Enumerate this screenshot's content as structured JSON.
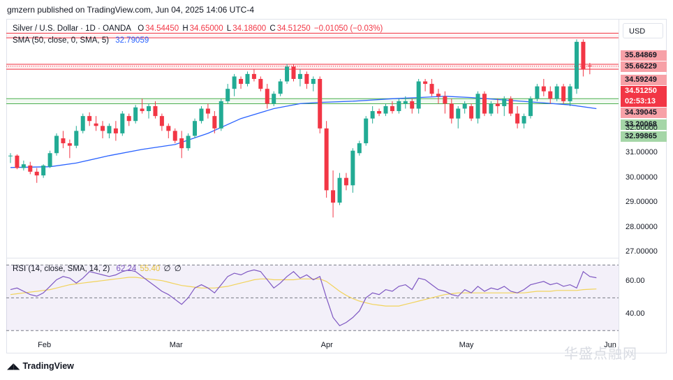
{
  "caption": "gmzern published on TradingView.com, Jun 04, 2025 14:06 UTC-4",
  "legend": {
    "symbol": "Silver / U.S. Dollar · 1D · OANDA",
    "open_label": "O",
    "open": "34.54450",
    "high_label": "H",
    "high": "34.65000",
    "low_label": "L",
    "low": "34.18600",
    "close_label": "C",
    "close": "34.51250",
    "change": "−0.01050 (−0.03%)",
    "sma_label": "SMA (50, close, 0, SMA, 5)",
    "sma_value": "32.79059",
    "rsi_label": "RSI (14, close, SMA, 14, 2)",
    "rsi_value": "62.24",
    "rsi_sma_value": "55.40",
    "rsi_extra1": "∅",
    "rsi_extra2": "∅"
  },
  "currency_button": "USD",
  "price_tags": [
    {
      "text": "35.84869",
      "bg": "#f7a1a7",
      "fg": "#131722"
    },
    {
      "text": "35.66229",
      "bg": "#f7a1a7",
      "fg": "#131722"
    },
    {
      "text": "34.59249",
      "bg": "#f7a1a7",
      "fg": "#131722"
    },
    {
      "text": "34.51250",
      "bg": "#f23645",
      "fg": "#ffffff"
    },
    {
      "text": "02:53:13",
      "bg": "#f23645",
      "fg": "#ffffff"
    },
    {
      "text": "34.39045",
      "bg": "#f7a1a7",
      "fg": "#131722"
    },
    {
      "text": "33.20068",
      "bg": "#a5d6a7",
      "fg": "#131722"
    },
    {
      "text": "32.99865",
      "bg": "#a5d6a7",
      "fg": "#131722"
    }
  ],
  "brand": "TradingView",
  "watermark": "华盛点融网",
  "colors": {
    "up": "#22ab94",
    "down": "#f23645",
    "sma": "#2962ff",
    "rsi": "#7e57c2",
    "rsi_sma": "#f2d35b",
    "resistance": "#f23645",
    "support": "#4caf50"
  },
  "chart_data": [
    {
      "type": "candlestick",
      "title": "Silver / U.S. Dollar · 1D · OANDA",
      "y_ticks": [
        "32.00000",
        "31.00000",
        "30.00000",
        "29.00000",
        "28.00000",
        "27.00000"
      ],
      "y_tick_values": [
        32,
        31,
        30,
        29,
        28,
        27
      ],
      "x_ticks": [
        "Feb",
        "Mar",
        "Apr",
        "May",
        "Jun"
      ],
      "x_tick_index": [
        5,
        25,
        48,
        69,
        91
      ],
      "ylim": [
        26.8,
        36.4
      ],
      "horizontal_levels": {
        "resistance": [
          35.84869,
          35.66229,
          34.59249,
          34.39045
        ],
        "support": [
          33.20068,
          32.99865
        ]
      },
      "last_price": 34.5125,
      "ohlc": [
        [
          30.9,
          31.0,
          30.6,
          30.9
        ],
        [
          30.9,
          30.95,
          30.35,
          30.4
        ],
        [
          30.4,
          30.7,
          30.3,
          30.55
        ],
        [
          30.5,
          30.65,
          30.15,
          30.25
        ],
        [
          30.25,
          30.4,
          29.8,
          30.1
        ],
        [
          30.1,
          30.55,
          30.0,
          30.5
        ],
        [
          30.45,
          31.1,
          30.4,
          31.0
        ],
        [
          31.0,
          31.8,
          30.9,
          31.7
        ],
        [
          31.6,
          31.9,
          31.2,
          31.4
        ],
        [
          31.4,
          31.55,
          30.8,
          31.3
        ],
        [
          31.3,
          32.1,
          31.2,
          31.9
        ],
        [
          31.9,
          32.6,
          31.8,
          32.5
        ],
        [
          32.5,
          32.65,
          32.1,
          32.3
        ],
        [
          32.2,
          32.5,
          31.9,
          32.1
        ],
        [
          32.1,
          32.3,
          31.6,
          31.9
        ],
        [
          31.8,
          32.2,
          31.6,
          32.1
        ],
        [
          32.0,
          32.3,
          31.5,
          31.8
        ],
        [
          31.8,
          32.7,
          31.7,
          32.6
        ],
        [
          32.5,
          32.6,
          32.1,
          32.3
        ],
        [
          32.3,
          32.95,
          32.2,
          32.85
        ],
        [
          32.8,
          33.2,
          32.6,
          32.7
        ],
        [
          32.7,
          33.0,
          32.4,
          32.9
        ],
        [
          32.9,
          33.1,
          32.4,
          32.5
        ],
        [
          32.5,
          32.6,
          31.9,
          32.1
        ],
        [
          32.1,
          32.2,
          31.6,
          31.9
        ],
        [
          31.9,
          32.0,
          31.4,
          31.5
        ],
        [
          31.6,
          31.9,
          30.8,
          31.2
        ],
        [
          31.2,
          31.8,
          31.1,
          31.7
        ],
        [
          31.7,
          32.4,
          31.6,
          32.3
        ],
        [
          32.3,
          32.9,
          32.2,
          32.8
        ],
        [
          32.8,
          33.0,
          32.4,
          32.6
        ],
        [
          32.5,
          32.7,
          31.8,
          32.0
        ],
        [
          32.0,
          33.2,
          31.9,
          33.1
        ],
        [
          33.1,
          33.8,
          33.0,
          33.6
        ],
        [
          33.6,
          34.2,
          33.3,
          34.1
        ],
        [
          34.0,
          34.1,
          33.6,
          33.8
        ],
        [
          33.8,
          34.3,
          33.7,
          34.2
        ],
        [
          34.2,
          34.4,
          33.9,
          34.0
        ],
        [
          34.0,
          34.1,
          33.5,
          33.6
        ],
        [
          33.6,
          33.8,
          32.8,
          33.0
        ],
        [
          33.0,
          33.5,
          32.9,
          33.4
        ],
        [
          33.4,
          34.0,
          33.3,
          33.9
        ],
        [
          33.9,
          34.6,
          33.8,
          34.5
        ],
        [
          34.5,
          34.6,
          33.9,
          34.0
        ],
        [
          34.0,
          34.4,
          33.7,
          34.2
        ],
        [
          34.2,
          34.3,
          33.6,
          33.8
        ],
        [
          33.8,
          34.1,
          33.5,
          34.0
        ],
        [
          34.0,
          34.1,
          31.8,
          32.0
        ],
        [
          32.0,
          32.3,
          29.2,
          29.5
        ],
        [
          29.5,
          30.3,
          28.4,
          29.0
        ],
        [
          29.0,
          30.2,
          28.9,
          30.0
        ],
        [
          30.0,
          30.2,
          29.5,
          29.7
        ],
        [
          29.7,
          31.2,
          29.4,
          31.1
        ],
        [
          31.0,
          31.5,
          30.9,
          31.4
        ],
        [
          31.4,
          32.5,
          31.3,
          32.4
        ],
        [
          32.4,
          32.9,
          32.2,
          32.7
        ],
        [
          32.7,
          32.8,
          32.5,
          32.6
        ],
        [
          32.6,
          33.0,
          32.5,
          32.9
        ],
        [
          32.9,
          33.1,
          32.6,
          32.7
        ],
        [
          32.7,
          33.2,
          32.6,
          33.1
        ],
        [
          33.0,
          33.3,
          32.8,
          33.1
        ],
        [
          33.1,
          33.2,
          32.6,
          32.8
        ],
        [
          32.8,
          34.0,
          32.6,
          33.9
        ],
        [
          33.9,
          34.0,
          33.5,
          33.8
        ],
        [
          33.8,
          34.0,
          33.3,
          33.4
        ],
        [
          33.4,
          33.6,
          33.0,
          33.3
        ],
        [
          33.3,
          33.5,
          32.6,
          33.0
        ],
        [
          33.0,
          33.2,
          32.2,
          32.4
        ],
        [
          32.4,
          32.9,
          32.0,
          32.8
        ],
        [
          32.8,
          33.1,
          32.6,
          33.0
        ],
        [
          32.9,
          33.0,
          32.3,
          32.4
        ],
        [
          32.4,
          33.5,
          32.2,
          33.4
        ],
        [
          33.4,
          33.5,
          32.5,
          32.6
        ],
        [
          32.6,
          33.1,
          32.5,
          33.0
        ],
        [
          33.0,
          33.2,
          32.6,
          32.9
        ],
        [
          32.9,
          33.3,
          32.5,
          33.2
        ],
        [
          33.2,
          33.3,
          32.5,
          32.6
        ],
        [
          32.6,
          32.9,
          32.0,
          32.2
        ],
        [
          32.2,
          32.6,
          32.0,
          32.5
        ],
        [
          32.5,
          33.3,
          32.4,
          33.2
        ],
        [
          33.2,
          33.8,
          33.1,
          33.7
        ],
        [
          33.7,
          34.0,
          33.3,
          33.5
        ],
        [
          33.5,
          33.7,
          33.0,
          33.2
        ],
        [
          33.2,
          33.8,
          33.1,
          33.7
        ],
        [
          33.7,
          33.8,
          33.0,
          33.1
        ],
        [
          33.1,
          33.8,
          32.9,
          33.7
        ],
        [
          33.6,
          35.6,
          33.4,
          35.5
        ],
        [
          35.5,
          35.6,
          34.1,
          34.4
        ],
        [
          34.54,
          34.65,
          34.19,
          34.51
        ]
      ],
      "sma": [
        [
          0,
          30.42
        ],
        [
          6,
          30.45
        ],
        [
          10,
          30.6
        ],
        [
          15,
          30.9
        ],
        [
          20,
          31.15
        ],
        [
          25,
          31.35
        ],
        [
          30,
          31.8
        ],
        [
          35,
          32.4
        ],
        [
          40,
          32.8
        ],
        [
          44,
          33.0
        ],
        [
          47,
          33.05
        ],
        [
          52,
          33.1
        ],
        [
          58,
          33.2
        ],
        [
          62,
          33.25
        ],
        [
          66,
          33.3
        ],
        [
          70,
          33.25
        ],
        [
          75,
          33.15
        ],
        [
          80,
          33.05
        ],
        [
          85,
          32.95
        ],
        [
          89,
          32.8
        ]
      ]
    },
    {
      "type": "line",
      "title": "RSI (14, close, SMA, 14, 2)",
      "y_ticks": [
        "60.00",
        "40.00"
      ],
      "y_tick_values": [
        60,
        40
      ],
      "bands": [
        70,
        50,
        30
      ],
      "ylim": [
        28,
        74
      ],
      "series": [
        {
          "name": "RSI",
          "values": [
            55,
            56,
            54,
            52,
            51,
            53,
            57,
            61,
            63,
            62,
            59,
            62,
            66,
            65,
            64,
            63,
            64,
            66,
            67,
            66,
            63,
            60,
            57,
            54,
            52,
            49,
            46,
            50,
            56,
            58,
            56,
            53,
            58,
            63,
            65,
            64,
            66,
            67,
            66,
            61,
            56,
            59,
            63,
            66,
            62,
            64,
            61,
            63,
            50,
            38,
            33,
            35,
            38,
            42,
            50,
            53,
            52,
            55,
            54,
            57,
            58,
            55,
            62,
            61,
            58,
            55,
            54,
            52,
            51,
            55,
            53,
            57,
            54,
            56,
            55,
            57,
            54,
            53,
            55,
            58,
            59,
            60,
            58,
            59,
            57,
            58,
            56,
            66,
            63,
            62.24
          ]
        },
        {
          "name": "RSI-based MA",
          "values": [
            52,
            52.5,
            53,
            53.5,
            54,
            54.5,
            55,
            56,
            57,
            58,
            58.5,
            59,
            59.5,
            60,
            60.5,
            61,
            61.5,
            62,
            62.5,
            62.5,
            62,
            61.5,
            61,
            60.5,
            59.5,
            58.5,
            57.5,
            57,
            56.5,
            56,
            56,
            56,
            56.5,
            57,
            58,
            59,
            60,
            61,
            61.5,
            61.5,
            61,
            61,
            61,
            61,
            61.5,
            61.5,
            61.5,
            61.5,
            60,
            57,
            54,
            51.5,
            49.5,
            48,
            47,
            46,
            45.5,
            45,
            45,
            45,
            46,
            47,
            48,
            49,
            50,
            51,
            52,
            52.5,
            53,
            53,
            53,
            53,
            53,
            53,
            53,
            53,
            53,
            53,
            53,
            53.5,
            54,
            54,
            54,
            54.5,
            54.5,
            54.5,
            54.5,
            55,
            55.2,
            55.4
          ]
        }
      ]
    }
  ]
}
